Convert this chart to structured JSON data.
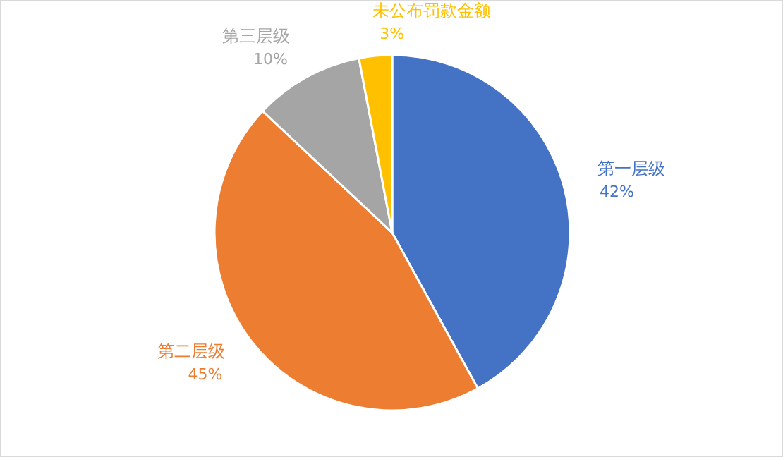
{
  "chart_data": {
    "type": "pie",
    "categories": [
      "第一层级",
      "第二层级",
      "第三层级",
      "未公布罚款金额"
    ],
    "values": [
      42,
      45,
      10,
      3
    ],
    "colors": [
      "#4472c4",
      "#ed7d31",
      "#a5a5a5",
      "#ffc000"
    ],
    "value_labels": [
      "42%",
      "45%",
      "10%",
      "3%"
    ]
  }
}
